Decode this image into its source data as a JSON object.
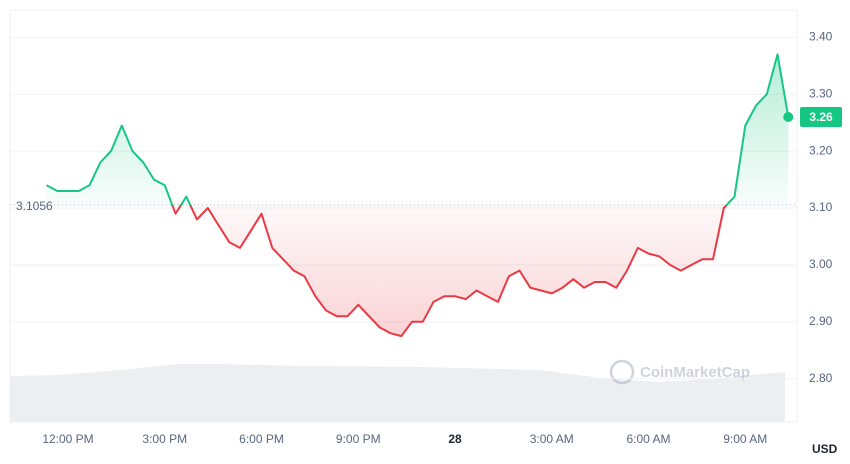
{
  "chart_data": {
    "type": "line",
    "categories": [
      null,
      null,
      "12:00 PM",
      null,
      null,
      null,
      null,
      null,
      null,
      null,
      null,
      "3:00 PM",
      null,
      null,
      null,
      null,
      null,
      null,
      null,
      null,
      "6:00 PM",
      null,
      null,
      null,
      null,
      null,
      null,
      null,
      null,
      "9:00 PM",
      null,
      null,
      null,
      null,
      null,
      null,
      null,
      null,
      "28",
      null,
      null,
      null,
      null,
      null,
      null,
      null,
      null,
      "3:00 AM",
      null,
      null,
      null,
      null,
      null,
      null,
      null,
      null,
      "6:00 AM",
      null,
      null,
      null,
      null,
      null,
      null,
      null,
      null,
      "9:00 AM",
      null,
      null,
      null,
      null
    ],
    "values": [
      3.14,
      3.13,
      3.13,
      3.13,
      3.14,
      3.18,
      3.2,
      3.245,
      3.2,
      3.18,
      3.15,
      3.14,
      3.09,
      3.12,
      3.08,
      3.1,
      3.07,
      3.04,
      3.03,
      3.06,
      3.09,
      3.03,
      3.01,
      2.99,
      2.98,
      2.945,
      2.92,
      2.91,
      2.91,
      2.93,
      2.91,
      2.89,
      2.88,
      2.875,
      2.9,
      2.9,
      2.935,
      2.945,
      2.945,
      2.94,
      2.955,
      2.945,
      2.935,
      2.98,
      2.99,
      2.96,
      2.955,
      2.95,
      2.96,
      2.975,
      2.96,
      2.97,
      2.97,
      2.96,
      2.99,
      3.03,
      3.02,
      3.015,
      3.0,
      2.99,
      3.0,
      3.01,
      3.01,
      3.1,
      3.12,
      3.245,
      3.28,
      3.3,
      3.37,
      3.26
    ],
    "baseline": 3.1056,
    "colors": {
      "above": "#16c784",
      "below": "#ea3943"
    },
    "ylim": [
      2.724,
      3.448
    ],
    "yticks": [
      {
        "value": 2.8,
        "label": "2.80"
      },
      {
        "value": 2.9,
        "label": "2.90"
      },
      {
        "value": 3.0,
        "label": "3.00"
      },
      {
        "value": 3.1,
        "label": "3.10"
      },
      {
        "value": 3.2,
        "label": "3.20"
      },
      {
        "value": 3.3,
        "label": "3.30"
      },
      {
        "value": 3.4,
        "label": "3.40"
      }
    ],
    "grid": true,
    "unit_label": "USD",
    "watermark": "CoinMarketCap"
  }
}
